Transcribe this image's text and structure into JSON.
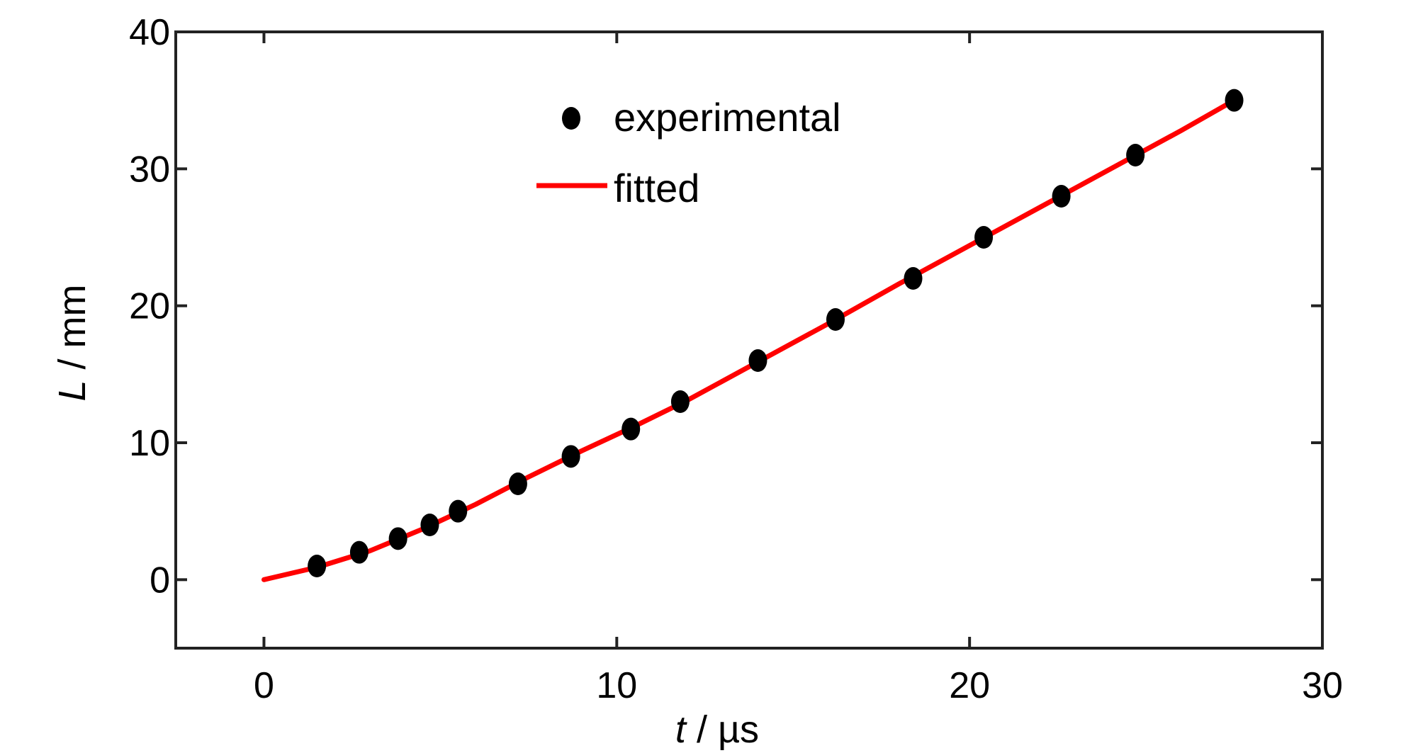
{
  "chart_data": {
    "type": "scatter",
    "xlabel": {
      "var": "t",
      "unit": " / µs"
    },
    "ylabel": {
      "var": "L",
      "unit": " / mm"
    },
    "xlim": [
      -2.5,
      30
    ],
    "ylim": [
      -5,
      40
    ],
    "xticks": [
      0,
      10,
      20,
      30
    ],
    "yticks": [
      0,
      10,
      20,
      30,
      40
    ],
    "grid": false,
    "legend_position": "top-center",
    "series": [
      {
        "name": "experimental",
        "kind": "points",
        "color": "#000000",
        "x": [
          1.5,
          2.7,
          3.8,
          4.7,
          5.5,
          7.2,
          8.7,
          10.4,
          11.8,
          14.0,
          16.2,
          18.4,
          20.4,
          22.6,
          24.7,
          27.5
        ],
        "y": [
          1,
          2,
          3,
          4,
          5,
          7,
          9,
          11,
          13,
          16,
          19,
          22,
          25,
          28,
          31,
          35
        ]
      },
      {
        "name": "fitted",
        "kind": "line",
        "color": "#ff0000",
        "x": [
          0,
          1.5,
          3,
          4.5,
          6,
          7.5,
          9,
          10.5,
          12,
          14,
          16,
          18,
          20,
          22,
          24,
          26,
          27.5
        ],
        "y": [
          0,
          0.9,
          2.1,
          3.7,
          5.5,
          7.5,
          9.4,
          11.2,
          13.1,
          15.9,
          18.7,
          21.6,
          24.4,
          27.2,
          30.0,
          32.8,
          35.0
        ]
      }
    ]
  }
}
